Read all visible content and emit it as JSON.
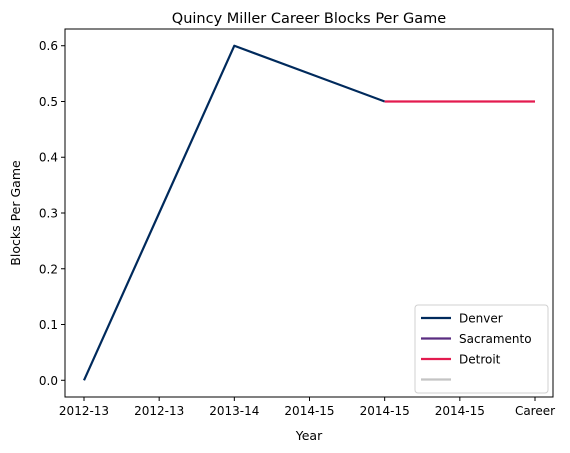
{
  "chart_data": {
    "type": "line",
    "title": "Quincy Miller Career Blocks Per Game",
    "xlabel": "Year",
    "ylabel": "Blocks Per Game",
    "categories": [
      "2012-13",
      "2012-13",
      "2013-14",
      "2014-15",
      "2014-15",
      "2014-15",
      "Career"
    ],
    "ylim": [
      -0.03,
      0.63
    ],
    "yticks": [
      "0.0",
      "0.1",
      "0.2",
      "0.3",
      "0.4",
      "0.5",
      "0.6"
    ],
    "grid": false,
    "legend_position": "bottom-right",
    "series": [
      {
        "name": "Denver",
        "color": "#002a5c",
        "values": [
          0.0,
          0.3,
          0.6,
          0.55,
          0.5,
          null,
          null
        ]
      },
      {
        "name": "Sacramento",
        "color": "#5a2d81",
        "values": [
          null,
          null,
          null,
          null,
          null,
          null,
          null
        ]
      },
      {
        "name": "Detroit",
        "color": "#e31b4f",
        "values": [
          null,
          null,
          null,
          null,
          0.5,
          0.5,
          0.5
        ]
      },
      {
        "name": "",
        "color": "#c4c4c4",
        "values": [
          null,
          null,
          null,
          null,
          null,
          null,
          null
        ]
      }
    ]
  }
}
